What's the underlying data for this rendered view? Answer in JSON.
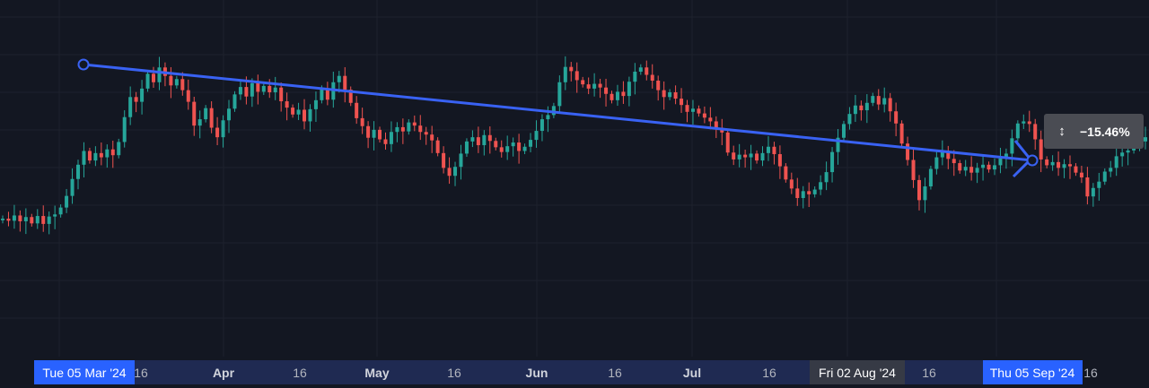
{
  "chart_data": {
    "type": "candlestick",
    "x_ticks": [
      {
        "label": "16",
        "kind": "day"
      },
      {
        "label": "Apr",
        "kind": "month"
      },
      {
        "label": "16",
        "kind": "day"
      },
      {
        "label": "May",
        "kind": "month"
      },
      {
        "label": "16",
        "kind": "day"
      },
      {
        "label": "Jun",
        "kind": "month"
      },
      {
        "label": "16",
        "kind": "day"
      },
      {
        "label": "Jul",
        "kind": "month"
      },
      {
        "label": "16",
        "kind": "day"
      },
      {
        "label": "16",
        "kind": "day"
      },
      {
        "label": "16",
        "kind": "day"
      }
    ],
    "date_tags": {
      "start": "Tue 05 Mar '24",
      "crosshair": "Fri 02 Aug '24",
      "end": "Thu 05 Sep '24"
    },
    "measure": {
      "label": "−15.46%",
      "value_percent": -15.46,
      "icon": "range-arrows-icon"
    },
    "colors": {
      "background": "#131722",
      "grid": "#1e222d",
      "up": "#26a69a",
      "down": "#ef5350",
      "line": "#3962f3",
      "tag_blue": "#2962ff",
      "tag_gray": "#363a45",
      "axis_band": "#1f2a52"
    },
    "price_relative_start": [
      0.0,
      -0.4,
      0.6,
      -0.5,
      0.3,
      -0.9,
      0.5,
      -1.0,
      0.4,
      0.8,
      2.1,
      4.3,
      7.5,
      10.2,
      12.8,
      11.0,
      12.4,
      11.6,
      13.1,
      12.0,
      14.5,
      19.2,
      23.0,
      22.1,
      24.6,
      27.4,
      25.8,
      28.6,
      27.0,
      25.2,
      26.4,
      24.3,
      22.1,
      17.6,
      18.8,
      20.9,
      17.2,
      15.4,
      18.6,
      20.8,
      23.5,
      24.9,
      23.1,
      25.6,
      24.0,
      25.1,
      23.9,
      24.8,
      22.2,
      21.0,
      19.7,
      20.6,
      18.4,
      20.7,
      22.4,
      24.6,
      22.5,
      25.8,
      27.0,
      24.4,
      21.9,
      19.0,
      17.5,
      15.3,
      16.8,
      15.0,
      14.1,
      16.4,
      17.3,
      16.5,
      18.2,
      17.6,
      16.4,
      15.9,
      14.8,
      12.4,
      9.6,
      8.1,
      9.8,
      12.3,
      14.6,
      15.4,
      13.9,
      15.8,
      14.7,
      13.5,
      12.6,
      13.7,
      14.4,
      12.8,
      13.6,
      14.9,
      16.6,
      18.8,
      19.6,
      21.3,
      25.8,
      28.7,
      27.9,
      26.2,
      25.4,
      24.6,
      25.5,
      24.8,
      23.6,
      22.4,
      24.0,
      23.2,
      25.9,
      27.8,
      28.6,
      27.2,
      26.1,
      24.3,
      23.0,
      23.9,
      22.7,
      21.5,
      20.2,
      20.8,
      19.9,
      19.1,
      18.4,
      17.2,
      16.3,
      12.5,
      11.2,
      12.1,
      11.6,
      12.3,
      11.0,
      12.4,
      13.6,
      12.2,
      9.9,
      7.4,
      5.7,
      3.9,
      5.2,
      4.6,
      5.5,
      6.9,
      8.8,
      12.6,
      15.3,
      17.9,
      19.8,
      21.4,
      20.5,
      21.9,
      23.2,
      21.6,
      22.8,
      20.3,
      18.0,
      14.2,
      11.1,
      7.3,
      3.5,
      6.1,
      9.4,
      11.6,
      12.8,
      11.3,
      10.5,
      9.1,
      9.8,
      8.7,
      9.6,
      10.2,
      9.3,
      10.1,
      11.4,
      12.3,
      15.2,
      18.0,
      18.4,
      17.9,
      15.0,
      11.2,
      10.1,
      10.7,
      9.6,
      10.3,
      9.9,
      8.7,
      7.8,
      4.2,
      5.8,
      7.0,
      8.9,
      9.6,
      11.8,
      12.5,
      12.9,
      13.8,
      14.6,
      15.4
    ]
  }
}
